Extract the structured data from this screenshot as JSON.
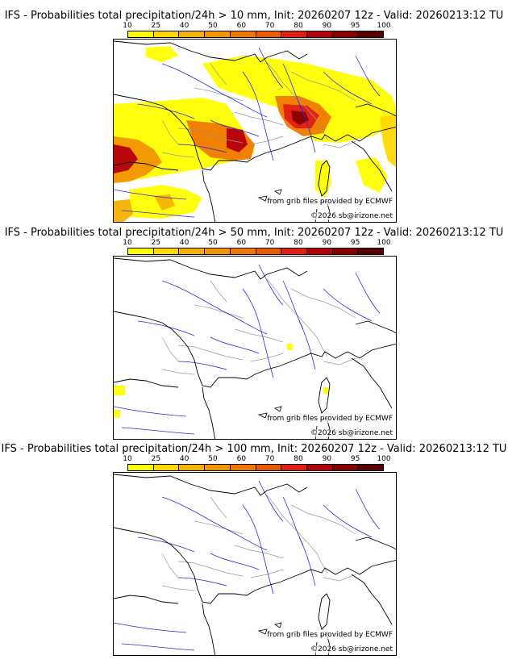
{
  "colorbar": {
    "ticks": [
      "10",
      "25",
      "40",
      "50",
      "60",
      "70",
      "80",
      "90",
      "95",
      "100"
    ],
    "colors": [
      "#ffff00",
      "#ffd800",
      "#f5b200",
      "#f19600",
      "#f07800",
      "#ec5a00",
      "#e01e14",
      "#b4000a",
      "#8a0000",
      "#5a0000"
    ]
  },
  "panels": [
    {
      "title": "IFS - Probabilities total precipitation/24h > 10 mm, Init: 20260207 12z - Valid: 20260213:12 TU",
      "credit_source": "from grib files provided by ECMWF",
      "credit_copyright": "©2026 sb@irizone.net",
      "coverage": "heavy"
    },
    {
      "title": "IFS - Probabilities total precipitation/24h > 50 mm, Init: 20260207 12z - Valid: 20260213:12 TU",
      "credit_source": "from grib files provided by ECMWF",
      "credit_copyright": "©2026 sb@irizone.net",
      "coverage": "light"
    },
    {
      "title": "IFS - Probabilities total precipitation/24h > 100 mm, Init: 20260207 12z - Valid: 20260213:12 TU",
      "credit_source": "from grib files provided by ECMWF",
      "credit_copyright": "©2026 sb@irizone.net",
      "coverage": "none"
    }
  ]
}
